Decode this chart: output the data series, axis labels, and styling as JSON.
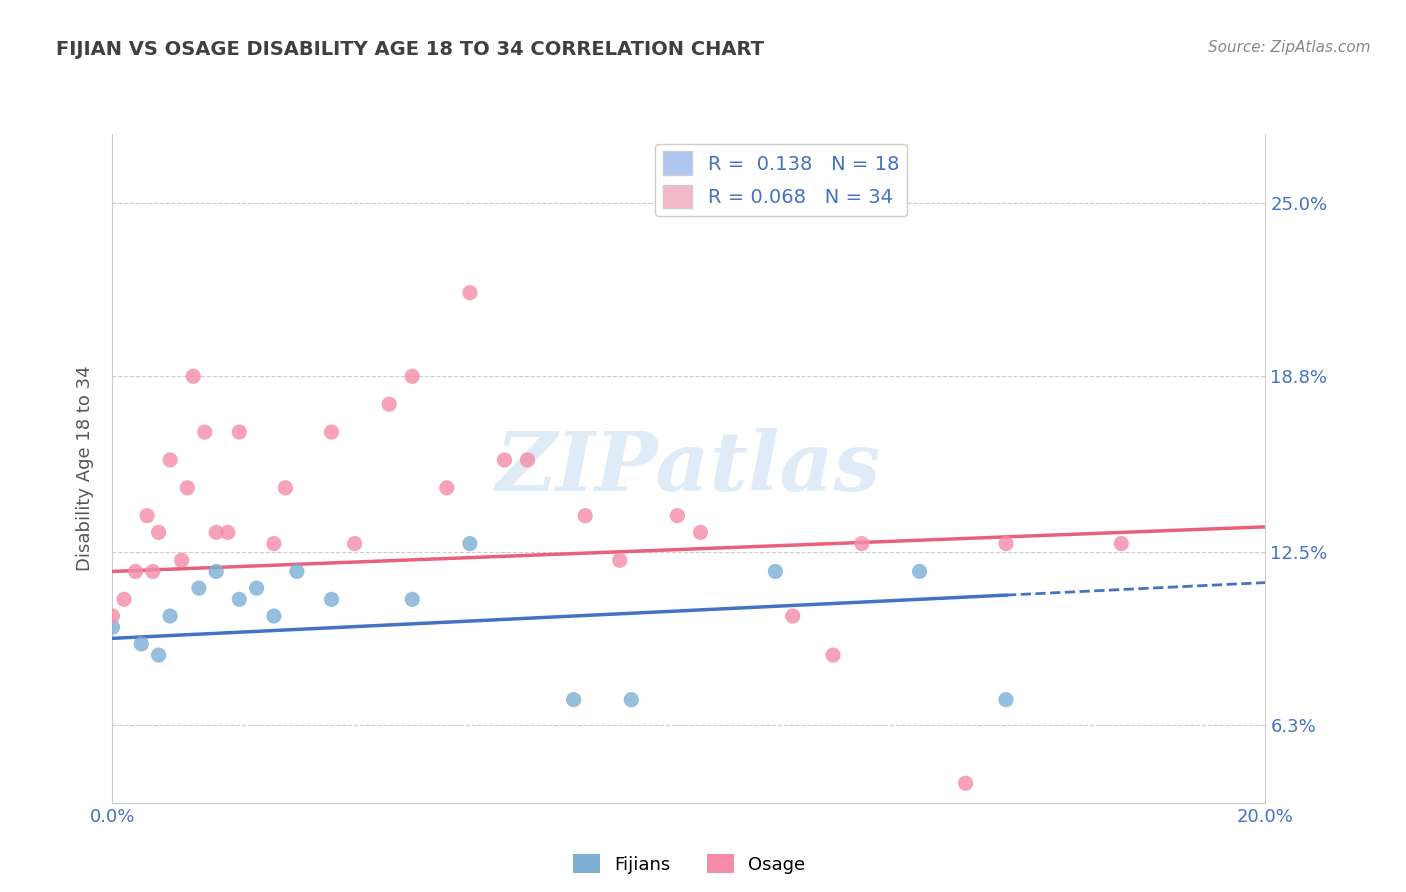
{
  "title": "FIJIAN VS OSAGE DISABILITY AGE 18 TO 34 CORRELATION CHART",
  "source_text": "Source: ZipAtlas.com",
  "ylabel": "Disability Age 18 to 34",
  "xlim": [
    0.0,
    0.2
  ],
  "ylim": [
    0.035,
    0.275
  ],
  "yticks": [
    0.063,
    0.125,
    0.188,
    0.25
  ],
  "ytick_labels": [
    "6.3%",
    "12.5%",
    "18.8%",
    "25.0%"
  ],
  "xticks": [
    0.0,
    0.2
  ],
  "xtick_labels": [
    "0.0%",
    "20.0%"
  ],
  "watermark": "ZIPatlas",
  "legend_items": [
    {
      "label": "R =  0.138   N = 18",
      "color": "#aec6f0"
    },
    {
      "label": "R = 0.068   N = 34",
      "color": "#f4b8c8"
    }
  ],
  "fijian_color": "#7bafd4",
  "osage_color": "#f48ca8",
  "fijian_line_color": "#4472c4",
  "osage_line_color": "#e8607a",
  "fijian_scatter": [
    [
      0.0,
      0.098
    ],
    [
      0.005,
      0.092
    ],
    [
      0.008,
      0.088
    ],
    [
      0.01,
      0.102
    ],
    [
      0.015,
      0.112
    ],
    [
      0.018,
      0.118
    ],
    [
      0.022,
      0.108
    ],
    [
      0.025,
      0.112
    ],
    [
      0.028,
      0.102
    ],
    [
      0.032,
      0.118
    ],
    [
      0.038,
      0.108
    ],
    [
      0.052,
      0.108
    ],
    [
      0.062,
      0.128
    ],
    [
      0.08,
      0.072
    ],
    [
      0.09,
      0.072
    ],
    [
      0.115,
      0.118
    ],
    [
      0.14,
      0.118
    ],
    [
      0.155,
      0.072
    ]
  ],
  "osage_scatter": [
    [
      0.0,
      0.102
    ],
    [
      0.002,
      0.108
    ],
    [
      0.004,
      0.118
    ],
    [
      0.006,
      0.138
    ],
    [
      0.007,
      0.118
    ],
    [
      0.008,
      0.132
    ],
    [
      0.01,
      0.158
    ],
    [
      0.012,
      0.122
    ],
    [
      0.013,
      0.148
    ],
    [
      0.014,
      0.188
    ],
    [
      0.016,
      0.168
    ],
    [
      0.018,
      0.132
    ],
    [
      0.02,
      0.132
    ],
    [
      0.022,
      0.168
    ],
    [
      0.028,
      0.128
    ],
    [
      0.03,
      0.148
    ],
    [
      0.038,
      0.168
    ],
    [
      0.042,
      0.128
    ],
    [
      0.048,
      0.178
    ],
    [
      0.052,
      0.188
    ],
    [
      0.058,
      0.148
    ],
    [
      0.062,
      0.218
    ],
    [
      0.068,
      0.158
    ],
    [
      0.072,
      0.158
    ],
    [
      0.082,
      0.138
    ],
    [
      0.088,
      0.122
    ],
    [
      0.098,
      0.138
    ],
    [
      0.102,
      0.132
    ],
    [
      0.118,
      0.102
    ],
    [
      0.125,
      0.088
    ],
    [
      0.13,
      0.128
    ],
    [
      0.148,
      0.042
    ],
    [
      0.155,
      0.128
    ],
    [
      0.175,
      0.128
    ]
  ],
  "fijian_trend_x": [
    0.0,
    0.2
  ],
  "fijian_trend_y": [
    0.094,
    0.114
  ],
  "osage_trend_x": [
    0.0,
    0.2
  ],
  "osage_trend_y": [
    0.118,
    0.134
  ],
  "fijian_trend_dashed_start": 0.155,
  "background_color": "#ffffff",
  "plot_bg_color": "#ffffff",
  "grid_color": "#cccccc",
  "title_color": "#404040",
  "axis_label_color": "#555555",
  "tick_color": "#4472c4"
}
